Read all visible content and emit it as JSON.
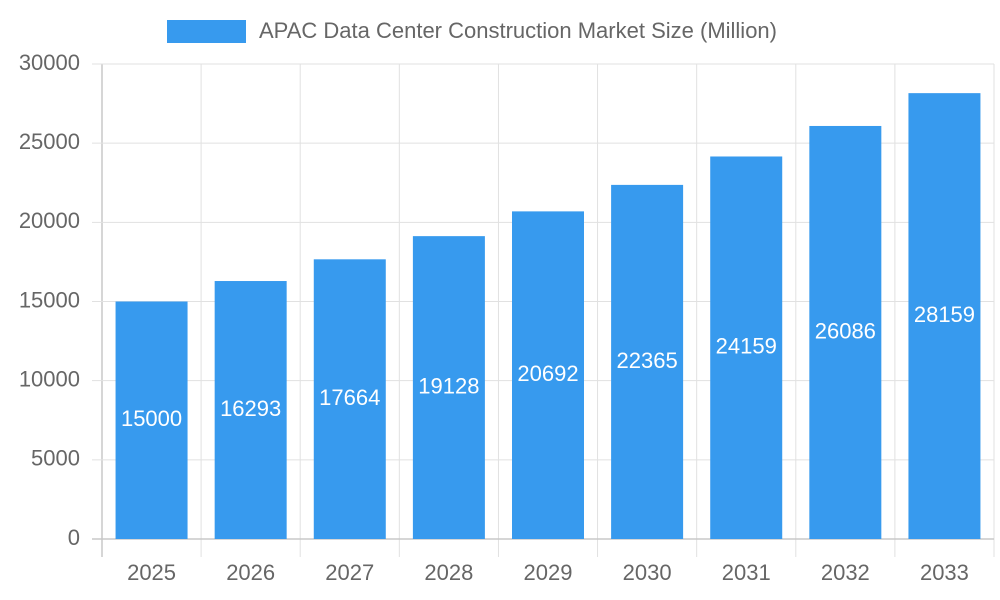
{
  "chart_data": {
    "type": "bar",
    "categories": [
      "2025",
      "2026",
      "2027",
      "2028",
      "2029",
      "2030",
      "2031",
      "2032",
      "2033"
    ],
    "series": [
      {
        "name": "APAC Data Center Construction Market Size (Million)",
        "color": "#379aee",
        "values": [
          15000,
          16293,
          17664,
          19128,
          20692,
          22365,
          24159,
          26086,
          28159
        ]
      }
    ],
    "ylim": [
      0,
      30000
    ],
    "yticks": [
      0,
      5000,
      10000,
      15000,
      20000,
      25000,
      30000
    ],
    "grid": true,
    "legend": "top",
    "data_labels": true
  }
}
